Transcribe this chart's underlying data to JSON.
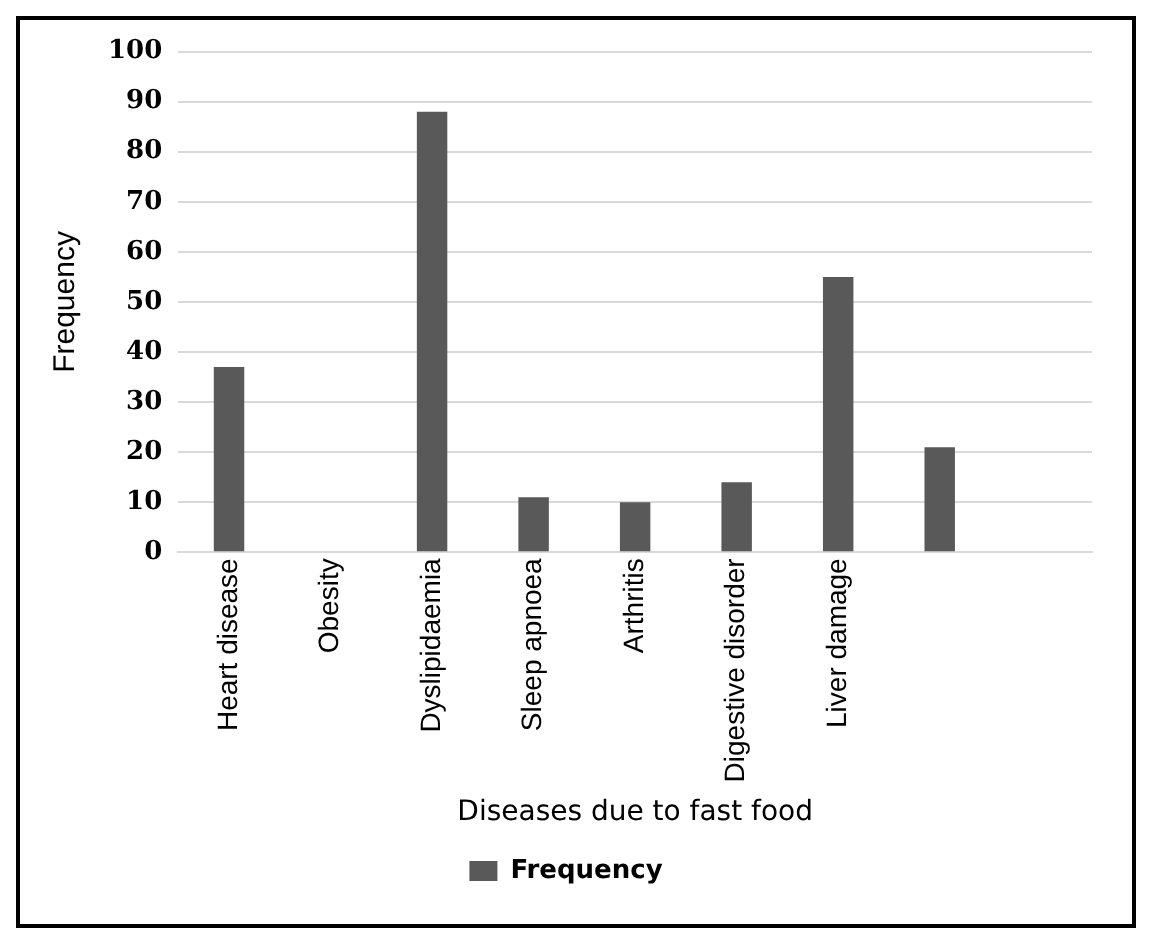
{
  "chart_data": {
    "type": "bar",
    "xlabel": "Diseases due to fast food",
    "ylabel": "Frequency",
    "categories": [
      "Heart disease",
      "Obesity",
      "Dyslipidaemia",
      "Sleep apnoea",
      "Arthritis",
      "Digestive disorder",
      "Liver damage",
      null,
      null
    ],
    "series": [
      {
        "name": "Frequency",
        "color": "#595959",
        "values": [
          37,
          0,
          88,
          11,
          10,
          14,
          55,
          21,
          null
        ]
      }
    ],
    "ylim": [
      0,
      100
    ],
    "yticks": [
      0,
      10,
      20,
      30,
      40,
      50,
      60,
      70,
      80,
      90,
      100
    ],
    "grid": "y",
    "legend": "bottom"
  }
}
